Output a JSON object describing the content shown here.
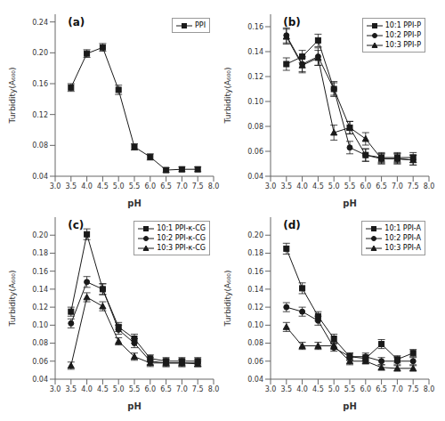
{
  "chart_data": [
    {
      "type": "line",
      "annotations": [
        "(a)"
      ],
      "xlabel": "pH",
      "ylabel": "Turbidity(A₆₀₀)",
      "x": [
        3.5,
        4.0,
        4.5,
        5.0,
        5.5,
        6.0,
        6.5,
        7.0,
        7.5
      ],
      "series": [
        {
          "name": "PPI",
          "color": "#1a1a1a",
          "marker": "square",
          "line_style": "solid",
          "values": [
            0.155,
            0.199,
            0.207,
            0.152,
            0.078,
            0.065,
            0.048,
            0.049,
            0.049
          ],
          "errors": [
            0.005,
            0.005,
            0.005,
            0.006,
            0.004,
            0.004,
            0.003,
            0.003,
            0.003
          ]
        }
      ],
      "xlim": [
        3.0,
        8.0
      ],
      "xticks": [
        {
          "value": 3.0,
          "label": "3.0"
        },
        3.5,
        {
          "value": 4.0,
          "label": "4.0"
        },
        4.5,
        {
          "value": 5.0,
          "label": "5.0"
        },
        5.5,
        {
          "value": 6.0,
          "label": "6.0"
        },
        6.5,
        {
          "value": 7.0,
          "label": "7.0"
        },
        7.5,
        {
          "value": 8.0,
          "label": "8.0"
        }
      ],
      "ylim": [
        0.04,
        0.25
      ],
      "yticks": [
        0.04,
        0.08,
        0.12,
        0.16,
        {
          "value": 0.2,
          "label": "0.20"
        },
        0.24
      ],
      "grid": false,
      "legend": "upper right"
    },
    {
      "type": "line",
      "annotations": [
        "(b)"
      ],
      "xlabel": "pH",
      "ylabel": "Turbidity(A₆₀₀)",
      "x": [
        3.5,
        4.0,
        4.5,
        5.0,
        5.5,
        6.0,
        6.5,
        7.0,
        7.5
      ],
      "series": [
        {
          "name": "10:1 PPI-P",
          "color": "#1a1a1a",
          "marker": "square",
          "line_style": "solid",
          "values": [
            0.13,
            0.136,
            0.149,
            0.11,
            0.079,
            0.057,
            0.055,
            0.055,
            0.055
          ],
          "errors": [
            0.005,
            0.005,
            0.005,
            0.005,
            0.005,
            0.005,
            0.004,
            0.004,
            0.004
          ]
        },
        {
          "name": "10:2 PPI-P",
          "color": "#1a1a1a",
          "marker": "circle",
          "line_style": "solid",
          "values": [
            0.153,
            0.13,
            0.136,
            0.11,
            0.063,
            0.057,
            0.054,
            0.054,
            0.053
          ],
          "errors": [
            0.006,
            0.006,
            0.007,
            0.006,
            0.005,
            0.005,
            0.004,
            0.004,
            0.004
          ]
        },
        {
          "name": "10:3 PPI-P",
          "color": "#1a1a1a",
          "marker": "triangle",
          "line_style": "solid",
          "values": [
            0.152,
            0.129,
            0.135,
            0.075,
            0.079,
            0.07,
            0.054,
            0.054,
            0.053
          ],
          "errors": [
            0.006,
            0.006,
            0.006,
            0.006,
            0.005,
            0.005,
            0.004,
            0.004,
            0.004
          ]
        }
      ],
      "xlim": [
        3.0,
        8.0
      ],
      "xticks": [
        {
          "value": 3.0,
          "label": "3.0"
        },
        3.5,
        {
          "value": 4.0,
          "label": "4.0"
        },
        4.5,
        {
          "value": 5.0,
          "label": "5.0"
        },
        5.5,
        {
          "value": 6.0,
          "label": "6.0"
        },
        6.5,
        {
          "value": 7.0,
          "label": "7.0"
        },
        7.5,
        {
          "value": 8.0,
          "label": "8.0"
        }
      ],
      "ylim": [
        0.04,
        0.17
      ],
      "yticks": [
        0.04,
        0.06,
        0.08,
        {
          "value": 0.1,
          "label": "0.10"
        },
        0.12,
        0.14,
        0.16
      ],
      "grid": false,
      "legend": "upper right"
    },
    {
      "type": "line",
      "annotations": [
        "(c)"
      ],
      "xlabel": "pH",
      "ylabel": "Turbidity(A₆₀₀)",
      "x": [
        3.5,
        4.0,
        4.5,
        5.0,
        5.5,
        6.0,
        6.5,
        7.0,
        7.5
      ],
      "series": [
        {
          "name": "10:1 PPI-κ-CG",
          "color": "#1a1a1a",
          "marker": "square",
          "line_style": "solid",
          "values": [
            0.115,
            0.201,
            0.14,
            0.098,
            0.085,
            0.063,
            0.06,
            0.06,
            0.06
          ],
          "errors": [
            0.005,
            0.006,
            0.006,
            0.005,
            0.005,
            0.004,
            0.004,
            0.004,
            0.004
          ]
        },
        {
          "name": "10:2 PPI-κ-CG",
          "color": "#1a1a1a",
          "marker": "circle",
          "line_style": "solid",
          "values": [
            0.102,
            0.148,
            0.14,
            0.095,
            0.08,
            0.06,
            0.058,
            0.058,
            0.058
          ],
          "errors": [
            0.005,
            0.006,
            0.006,
            0.005,
            0.005,
            0.004,
            0.004,
            0.004,
            0.004
          ]
        },
        {
          "name": "10:3 PPI-κ-CG",
          "color": "#1a1a1a",
          "marker": "triangle",
          "line_style": "solid",
          "values": [
            0.055,
            0.131,
            0.121,
            0.082,
            0.065,
            0.058,
            0.058,
            0.058,
            0.057
          ],
          "errors": [
            0.004,
            0.005,
            0.005,
            0.004,
            0.004,
            0.004,
            0.004,
            0.004,
            0.003
          ]
        }
      ],
      "xlim": [
        3.0,
        8.0
      ],
      "xticks": [
        {
          "value": 3.0,
          "label": "3.0"
        },
        3.5,
        {
          "value": 4.0,
          "label": "4.0"
        },
        4.5,
        {
          "value": 5.0,
          "label": "5.0"
        },
        5.5,
        {
          "value": 6.0,
          "label": "6.0"
        },
        6.5,
        {
          "value": 7.0,
          "label": "7.0"
        },
        7.5,
        {
          "value": 8.0,
          "label": "8.0"
        }
      ],
      "ylim": [
        0.04,
        0.22
      ],
      "yticks": [
        0.04,
        0.06,
        0.08,
        {
          "value": 0.1,
          "label": "0.10"
        },
        0.12,
        0.14,
        0.16,
        0.18,
        {
          "value": 0.2,
          "label": "0.20"
        }
      ],
      "grid": false,
      "legend": "upper right"
    },
    {
      "type": "line",
      "annotations": [
        "(d)"
      ],
      "xlabel": "pH",
      "ylabel": "Turbidity(A₆₀₀)",
      "x": [
        3.5,
        4.0,
        4.5,
        5.0,
        5.5,
        6.0,
        6.5,
        7.0,
        7.5
      ],
      "series": [
        {
          "name": "10:1 PPI-A",
          "color": "#1a1a1a",
          "marker": "square",
          "line_style": "solid",
          "values": [
            0.185,
            0.141,
            0.11,
            0.085,
            0.065,
            0.063,
            0.079,
            0.062,
            0.069
          ],
          "errors": [
            0.006,
            0.006,
            0.005,
            0.005,
            0.004,
            0.004,
            0.005,
            0.004,
            0.004
          ]
        },
        {
          "name": "10:2 PPI-A",
          "color": "#1a1a1a",
          "marker": "circle",
          "line_style": "solid",
          "values": [
            0.12,
            0.115,
            0.105,
            0.075,
            0.065,
            0.065,
            0.06,
            0.06,
            0.06
          ],
          "errors": [
            0.005,
            0.005,
            0.005,
            0.004,
            0.004,
            0.004,
            0.004,
            0.004,
            0.004
          ]
        },
        {
          "name": "10:3 PPI-A",
          "color": "#1a1a1a",
          "marker": "triangle",
          "line_style": "solid",
          "values": [
            0.098,
            0.077,
            0.077,
            0.077,
            0.06,
            0.06,
            0.053,
            0.052,
            0.052
          ],
          "errors": [
            0.005,
            0.004,
            0.004,
            0.004,
            0.004,
            0.003,
            0.003,
            0.003,
            0.003
          ]
        }
      ],
      "xlim": [
        3.0,
        8.0
      ],
      "xticks": [
        {
          "value": 3.0,
          "label": "3.0"
        },
        3.5,
        {
          "value": 4.0,
          "label": "4.0"
        },
        4.5,
        {
          "value": 5.0,
          "label": "5.0"
        },
        5.5,
        {
          "value": 6.0,
          "label": "6.0"
        },
        6.5,
        {
          "value": 7.0,
          "label": "7.0"
        },
        7.5,
        {
          "value": 8.0,
          "label": "8.0"
        }
      ],
      "ylim": [
        0.04,
        0.22
      ],
      "yticks": [
        0.04,
        0.06,
        0.08,
        {
          "value": 0.1,
          "label": "0.10"
        },
        0.12,
        0.14,
        0.16,
        0.18,
        {
          "value": 0.2,
          "label": "0.20"
        }
      ],
      "grid": false,
      "legend": "upper right"
    }
  ]
}
